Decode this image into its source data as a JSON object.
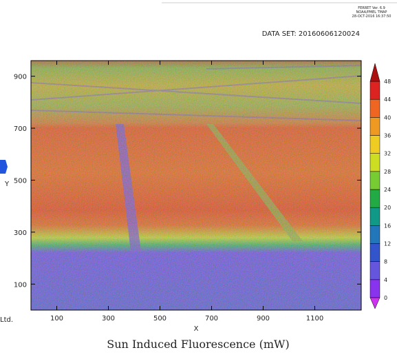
{
  "header": {
    "program": "FERRET Ver. 6.9",
    "institution": "NOAA/PMEL TMAP",
    "timestamp": "28-OCT-2016 16:37:50",
    "dataset": "DATA SET: 20160606120024",
    "side_text": "Ltd."
  },
  "chart_data": {
    "type": "heatmap",
    "title": "Sun Induced Fluorescence (mW)",
    "x_label": "X",
    "y_label": "Y",
    "xlim": [
      0,
      1280
    ],
    "xticks": [
      100,
      300,
      500,
      700,
      900,
      1100
    ],
    "ylim": [
      0,
      960
    ],
    "yticks": [
      100,
      300,
      500,
      700,
      900
    ],
    "levels": [
      0,
      4,
      8,
      12,
      16,
      20,
      24,
      28,
      32,
      36,
      40,
      44,
      48
    ],
    "colors": [
      "#cc33ee",
      "#8833ee",
      "#6655dd",
      "#3355cc",
      "#2277bb",
      "#119988",
      "#22aa44",
      "#77cc33",
      "#ccdd22",
      "#eecc22",
      "#ee9922",
      "#ee6622",
      "#dd2222",
      "#aa1111"
    ]
  }
}
